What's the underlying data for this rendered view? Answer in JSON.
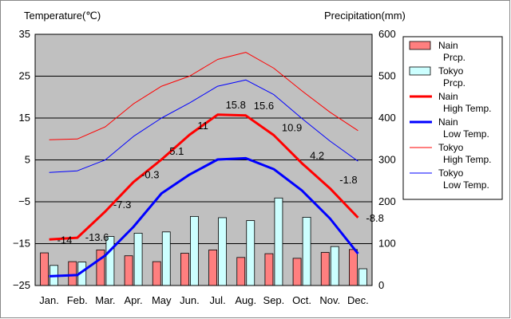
{
  "chart_data": {
    "type": "bar+line",
    "y_left_label": "Temperature(℃)",
    "y_right_label": "Precipitation(mm)",
    "y_left_ticks": [
      "35",
      "25",
      "15",
      "5",
      "−5",
      "−15",
      "−25"
    ],
    "y_right_ticks": [
      "600",
      "500",
      "400",
      "300",
      "200",
      "100",
      "0"
    ],
    "ylim_left": [
      -25,
      35
    ],
    "ylim_right": [
      0,
      600
    ],
    "grid": true,
    "categories": [
      "Jan.",
      "Feb.",
      "Mar.",
      "Apr.",
      "May",
      "Jun.",
      "Jul.",
      "Aug.",
      "Sep.",
      "Oct.",
      "Nov.",
      "Dec."
    ],
    "precip_series": [
      {
        "name": "Nain Prcp.",
        "color": "#ff7f7f",
        "values": [
          78,
          57,
          85,
          71,
          57,
          77,
          85,
          67,
          76,
          65,
          79,
          86
        ]
      },
      {
        "name": "Tokyo Prcp.",
        "color": "#ccffff",
        "values": [
          48,
          56,
          117,
          125,
          128,
          165,
          162,
          155,
          209,
          163,
          93,
          40
        ]
      }
    ],
    "temp_series": [
      {
        "name": "Nain High Temp.",
        "color": "#ff0000",
        "width": 3,
        "values": [
          -14.0,
          -13.6,
          -7.3,
          -0.3,
          5.1,
          11.0,
          15.8,
          15.6,
          10.9,
          4.2,
          -1.8,
          -8.8
        ]
      },
      {
        "name": "Nain Low Temp.",
        "color": "#0000ff",
        "width": 3,
        "values": [
          -22.8,
          -22.5,
          -17.8,
          -11.0,
          -3.0,
          1.5,
          5.1,
          5.4,
          2.8,
          -2.3,
          -9.0,
          -17.4
        ]
      },
      {
        "name": "Tokyo High Temp.",
        "color": "#ff0000",
        "width": 1,
        "values": [
          9.8,
          10.0,
          12.9,
          18.4,
          22.6,
          25.0,
          29.0,
          30.7,
          26.9,
          21.5,
          16.4,
          12.0
        ]
      },
      {
        "name": "Tokyo Low Temp.",
        "color": "#0000ff",
        "width": 1,
        "values": [
          2.0,
          2.4,
          5.0,
          10.6,
          15.0,
          18.6,
          22.6,
          24.1,
          20.6,
          14.9,
          9.5,
          4.7
        ]
      }
    ],
    "data_labels": [
      "-14",
      "-13.6",
      "-7.3",
      "-0.3",
      "5.1",
      "11",
      "15.8",
      "15.6",
      "10.9",
      "4.2",
      "-1.8",
      "-8.8"
    ]
  }
}
